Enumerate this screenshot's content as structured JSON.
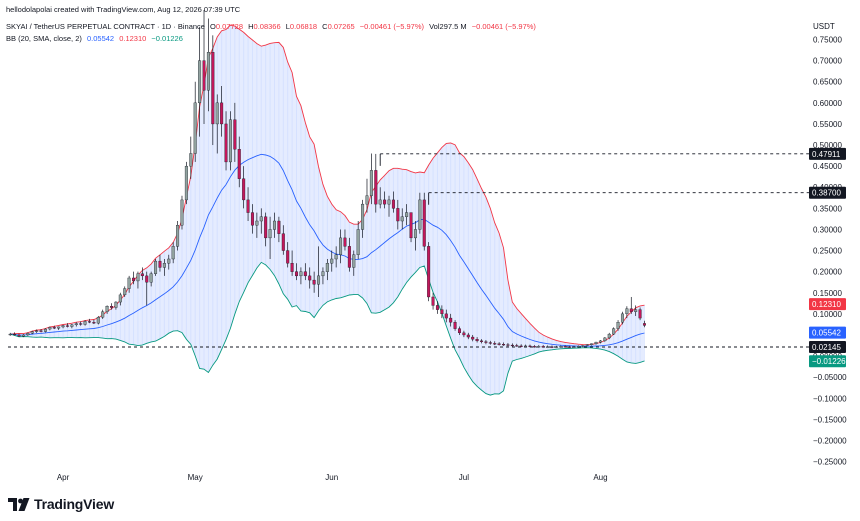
{
  "attribution": "hellodolapolai created with TradingView.com, Aug 12, 2026 07:39 UTC",
  "header": {
    "symbol": "SKYAI / TetherUS PERPETUAL CONTRACT · 1D · Binance",
    "ohlc": [
      {
        "label": "O",
        "value": "0.07728"
      },
      {
        "label": "H",
        "value": "0.08366"
      },
      {
        "label": "L",
        "value": "0.06818"
      },
      {
        "label": "C",
        "value": "0.07265"
      }
    ],
    "change": "−0.00461 (−5.97%)",
    "volume": "Vol297.5 M",
    "volume_change": "−0.00461 (−5.97%)"
  },
  "indicator": {
    "name": "BB (20, SMA, close, 2)",
    "middle": "0.05542",
    "upper": "0.12310",
    "lower": "−0.01226",
    "colors": {
      "upper": "#f23645",
      "middle": "#2962ff",
      "lower": "#089981",
      "fill": "#2962ff"
    }
  },
  "currency_label": "USDT",
  "logo_text": "TradingView",
  "chart_data": {
    "type": "candlestick",
    "y_axis": {
      "range": [
        -0.27,
        0.82
      ],
      "ticks": [
        0.75,
        0.7,
        0.65,
        0.6,
        0.55,
        0.5,
        0.45,
        0.4,
        0.35,
        0.3,
        0.25,
        0.2,
        0.15,
        0.1,
        0.05,
        0.0,
        -0.05,
        -0.1,
        -0.15,
        -0.2,
        -0.25
      ],
      "tick_labels": [
        "0.75000",
        "0.70000",
        "0.65000",
        "0.60000",
        "0.55000",
        "0.50000",
        "0.45000",
        "0.40000",
        "0.35000",
        "0.30000",
        "0.25000",
        "0.20000",
        "0.15000",
        "0.10000",
        "0.05000",
        "0.00000",
        "−0.05000",
        "−0.10000",
        "−0.15000",
        "−0.20000",
        "−0.25000"
      ]
    },
    "x_axis": {
      "labels": [
        {
          "text": "Apr",
          "index": 12
        },
        {
          "text": "May",
          "index": 42
        },
        {
          "text": "Jun",
          "index": 73
        },
        {
          "text": "Jul",
          "index": 103
        },
        {
          "text": "Aug",
          "index": 134
        }
      ],
      "visible_start_index": 0,
      "visible_end_index": 168
    },
    "colors": {
      "up": "#92a3a0",
      "down": "#c2185b"
    },
    "candles": [
      [
        0.05,
        0.055,
        0.048,
        0.052
      ],
      [
        0.052,
        0.056,
        0.049,
        0.05
      ],
      [
        0.05,
        0.053,
        0.046,
        0.047
      ],
      [
        0.047,
        0.052,
        0.045,
        0.05
      ],
      [
        0.05,
        0.056,
        0.048,
        0.054
      ],
      [
        0.054,
        0.06,
        0.052,
        0.058
      ],
      [
        0.058,
        0.063,
        0.055,
        0.06
      ],
      [
        0.06,
        0.064,
        0.056,
        0.058
      ],
      [
        0.058,
        0.066,
        0.056,
        0.064
      ],
      [
        0.064,
        0.07,
        0.061,
        0.068
      ],
      [
        0.068,
        0.072,
        0.064,
        0.066
      ],
      [
        0.066,
        0.07,
        0.062,
        0.069
      ],
      [
        0.069,
        0.074,
        0.066,
        0.072
      ],
      [
        0.072,
        0.078,
        0.068,
        0.07
      ],
      [
        0.07,
        0.076,
        0.066,
        0.074
      ],
      [
        0.074,
        0.08,
        0.07,
        0.077
      ],
      [
        0.077,
        0.082,
        0.072,
        0.075
      ],
      [
        0.075,
        0.085,
        0.072,
        0.082
      ],
      [
        0.082,
        0.088,
        0.078,
        0.08
      ],
      [
        0.08,
        0.086,
        0.076,
        0.078
      ],
      [
        0.078,
        0.095,
        0.075,
        0.092
      ],
      [
        0.092,
        0.11,
        0.088,
        0.105
      ],
      [
        0.105,
        0.12,
        0.1,
        0.118
      ],
      [
        0.118,
        0.125,
        0.11,
        0.115
      ],
      [
        0.115,
        0.13,
        0.11,
        0.128
      ],
      [
        0.128,
        0.15,
        0.12,
        0.145
      ],
      [
        0.145,
        0.165,
        0.14,
        0.16
      ],
      [
        0.16,
        0.19,
        0.15,
        0.185
      ],
      [
        0.185,
        0.2,
        0.17,
        0.178
      ],
      [
        0.178,
        0.2,
        0.16,
        0.195
      ],
      [
        0.195,
        0.21,
        0.18,
        0.19
      ],
      [
        0.19,
        0.2,
        0.12,
        0.175
      ],
      [
        0.175,
        0.2,
        0.165,
        0.195
      ],
      [
        0.195,
        0.23,
        0.19,
        0.225
      ],
      [
        0.225,
        0.24,
        0.2,
        0.21
      ],
      [
        0.21,
        0.23,
        0.19,
        0.22
      ],
      [
        0.22,
        0.24,
        0.205,
        0.23
      ],
      [
        0.23,
        0.27,
        0.22,
        0.26
      ],
      [
        0.26,
        0.32,
        0.25,
        0.31
      ],
      [
        0.31,
        0.38,
        0.3,
        0.37
      ],
      [
        0.37,
        0.46,
        0.36,
        0.45
      ],
      [
        0.45,
        0.52,
        0.42,
        0.48
      ],
      [
        0.48,
        0.65,
        0.46,
        0.6
      ],
      [
        0.6,
        0.78,
        0.52,
        0.7
      ],
      [
        0.7,
        0.82,
        0.55,
        0.63
      ],
      [
        0.63,
        0.8,
        0.58,
        0.72
      ],
      [
        0.72,
        0.76,
        0.5,
        0.55
      ],
      [
        0.55,
        0.62,
        0.48,
        0.6
      ],
      [
        0.6,
        0.64,
        0.52,
        0.55
      ],
      [
        0.55,
        0.58,
        0.44,
        0.46
      ],
      [
        0.46,
        0.58,
        0.44,
        0.56
      ],
      [
        0.56,
        0.6,
        0.46,
        0.49
      ],
      [
        0.49,
        0.52,
        0.4,
        0.42
      ],
      [
        0.42,
        0.45,
        0.35,
        0.37
      ],
      [
        0.37,
        0.4,
        0.32,
        0.34
      ],
      [
        0.34,
        0.36,
        0.29,
        0.31
      ],
      [
        0.31,
        0.34,
        0.28,
        0.32
      ],
      [
        0.32,
        0.35,
        0.29,
        0.33
      ],
      [
        0.33,
        0.34,
        0.26,
        0.28
      ],
      [
        0.28,
        0.33,
        0.23,
        0.3
      ],
      [
        0.3,
        0.34,
        0.28,
        0.32
      ],
      [
        0.32,
        0.33,
        0.27,
        0.29
      ],
      [
        0.29,
        0.31,
        0.24,
        0.25
      ],
      [
        0.25,
        0.27,
        0.21,
        0.22
      ],
      [
        0.22,
        0.25,
        0.19,
        0.2
      ],
      [
        0.2,
        0.22,
        0.18,
        0.19
      ],
      [
        0.19,
        0.21,
        0.17,
        0.2
      ],
      [
        0.2,
        0.22,
        0.18,
        0.19
      ],
      [
        0.19,
        0.21,
        0.16,
        0.18
      ],
      [
        0.18,
        0.2,
        0.15,
        0.17
      ],
      [
        0.17,
        0.26,
        0.14,
        0.19
      ],
      [
        0.19,
        0.21,
        0.17,
        0.2
      ],
      [
        0.2,
        0.23,
        0.18,
        0.22
      ],
      [
        0.22,
        0.25,
        0.2,
        0.23
      ],
      [
        0.23,
        0.26,
        0.21,
        0.24
      ],
      [
        0.24,
        0.3,
        0.22,
        0.28
      ],
      [
        0.28,
        0.3,
        0.25,
        0.26
      ],
      [
        0.26,
        0.28,
        0.2,
        0.21
      ],
      [
        0.21,
        0.25,
        0.19,
        0.24
      ],
      [
        0.24,
        0.32,
        0.23,
        0.3
      ],
      [
        0.3,
        0.37,
        0.28,
        0.36
      ],
      [
        0.36,
        0.42,
        0.34,
        0.38
      ],
      [
        0.38,
        0.48,
        0.36,
        0.44
      ],
      [
        0.44,
        0.479,
        0.34,
        0.36
      ],
      [
        0.36,
        0.4,
        0.35,
        0.37
      ],
      [
        0.37,
        0.39,
        0.35,
        0.36
      ],
      [
        0.36,
        0.38,
        0.33,
        0.37
      ],
      [
        0.37,
        0.39,
        0.34,
        0.35
      ],
      [
        0.35,
        0.37,
        0.3,
        0.32
      ],
      [
        0.32,
        0.35,
        0.3,
        0.33
      ],
      [
        0.33,
        0.36,
        0.31,
        0.34
      ],
      [
        0.34,
        0.34,
        0.27,
        0.28
      ],
      [
        0.28,
        0.32,
        0.25,
        0.3
      ],
      [
        0.3,
        0.387,
        0.29,
        0.37
      ],
      [
        0.37,
        0.387,
        0.25,
        0.26
      ],
      [
        0.26,
        0.27,
        0.13,
        0.14
      ],
      [
        0.14,
        0.15,
        0.11,
        0.12
      ],
      [
        0.12,
        0.13,
        0.1,
        0.11
      ],
      [
        0.11,
        0.12,
        0.09,
        0.1
      ],
      [
        0.1,
        0.11,
        0.08,
        0.09
      ],
      [
        0.09,
        0.1,
        0.07,
        0.08
      ],
      [
        0.08,
        0.085,
        0.06,
        0.065
      ],
      [
        0.065,
        0.07,
        0.05,
        0.055
      ],
      [
        0.055,
        0.06,
        0.045,
        0.05
      ],
      [
        0.05,
        0.055,
        0.04,
        0.045
      ],
      [
        0.045,
        0.05,
        0.035,
        0.04
      ],
      [
        0.04,
        0.045,
        0.032,
        0.036
      ],
      [
        0.036,
        0.04,
        0.03,
        0.034
      ],
      [
        0.034,
        0.038,
        0.028,
        0.032
      ],
      [
        0.032,
        0.036,
        0.027,
        0.03
      ],
      [
        0.03,
        0.035,
        0.026,
        0.029
      ],
      [
        0.029,
        0.033,
        0.025,
        0.028
      ],
      [
        0.028,
        0.032,
        0.024,
        0.027
      ],
      [
        0.027,
        0.031,
        0.023,
        0.026
      ],
      [
        0.026,
        0.03,
        0.022,
        0.025
      ],
      [
        0.025,
        0.029,
        0.022,
        0.024
      ],
      [
        0.024,
        0.028,
        0.021,
        0.023
      ],
      [
        0.023,
        0.027,
        0.021,
        0.024
      ],
      [
        0.024,
        0.027,
        0.021,
        0.023
      ],
      [
        0.023,
        0.026,
        0.02,
        0.022
      ],
      [
        0.022,
        0.026,
        0.02,
        0.023
      ],
      [
        0.023,
        0.026,
        0.02,
        0.022
      ],
      [
        0.022,
        0.025,
        0.02,
        0.022
      ],
      [
        0.022,
        0.025,
        0.019,
        0.021
      ],
      [
        0.021,
        0.024,
        0.019,
        0.022
      ],
      [
        0.022,
        0.025,
        0.02,
        0.023
      ],
      [
        0.023,
        0.025,
        0.02,
        0.022
      ],
      [
        0.022,
        0.024,
        0.019,
        0.021
      ],
      [
        0.021,
        0.024,
        0.019,
        0.022
      ],
      [
        0.022,
        0.025,
        0.02,
        0.023
      ],
      [
        0.023,
        0.026,
        0.021,
        0.025
      ],
      [
        0.025,
        0.028,
        0.023,
        0.027
      ],
      [
        0.027,
        0.03,
        0.025,
        0.029
      ],
      [
        0.029,
        0.034,
        0.027,
        0.033
      ],
      [
        0.033,
        0.038,
        0.03,
        0.036
      ],
      [
        0.036,
        0.045,
        0.034,
        0.043
      ],
      [
        0.043,
        0.055,
        0.04,
        0.052
      ],
      [
        0.052,
        0.068,
        0.05,
        0.065
      ],
      [
        0.065,
        0.085,
        0.06,
        0.08
      ],
      [
        0.08,
        0.105,
        0.075,
        0.1
      ],
      [
        0.1,
        0.118,
        0.09,
        0.112
      ],
      [
        0.112,
        0.14,
        0.1,
        0.105
      ],
      [
        0.105,
        0.12,
        0.095,
        0.11
      ],
      [
        0.11,
        0.115,
        0.085,
        0.09
      ],
      [
        0.0773,
        0.0837,
        0.0682,
        0.0727
      ]
    ],
    "bollinger": {
      "period": 20,
      "std_dev": 2,
      "upper_last": 0.1231,
      "middle_last": 0.05542,
      "lower_last": -0.01226
    },
    "price_levels": [
      {
        "label": "0.47911",
        "value": 0.47911,
        "start_index": 84,
        "style": "dashed"
      },
      {
        "label": "0.38700",
        "value": 0.387,
        "start_index": 95,
        "style": "dashed"
      },
      {
        "label": "0.02145",
        "value": 0.02145,
        "start_index": 0,
        "style": "dashed"
      }
    ],
    "value_tags": [
      {
        "label": "0.12310",
        "value": 0.1231,
        "color": "#f23645"
      },
      {
        "label": "0.05542",
        "value": 0.05542,
        "color": "#2962ff"
      },
      {
        "label": "−0.01226",
        "value": -0.01226,
        "color": "#089981"
      }
    ]
  }
}
